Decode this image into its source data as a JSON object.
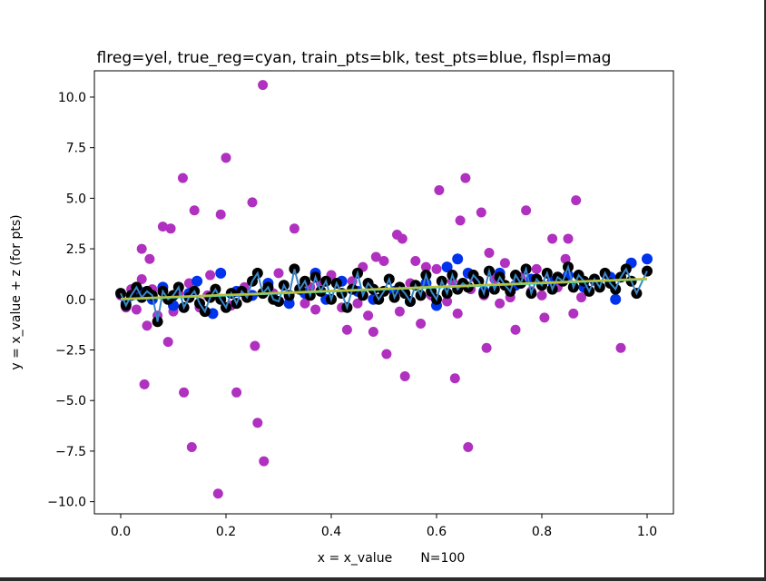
{
  "chart_data": {
    "type": "scatter",
    "title": "flreg=yel, true_reg=cyan, train_pts=blk, test_pts=blue, flspl=mag",
    "xlabel": "x = x_value       N=100",
    "ylabel": "y = x_value + z (for pts)",
    "xlim": [
      -0.05,
      1.05
    ],
    "ylim": [
      -10.6,
      11.3
    ],
    "xticks": [
      0.0,
      0.2,
      0.4,
      0.6,
      0.8,
      1.0
    ],
    "xtick_labels": [
      "0.0",
      "0.2",
      "0.4",
      "0.6",
      "0.8",
      "1.0"
    ],
    "yticks": [
      -10.0,
      -7.5,
      -5.0,
      -2.5,
      0.0,
      2.5,
      5.0,
      7.5,
      10.0
    ],
    "ytick_labels": [
      "−10.0",
      "−7.5",
      "−5.0",
      "−2.5",
      "0.0",
      "2.5",
      "5.0",
      "7.5",
      "10.0"
    ],
    "grid": false,
    "colors": {
      "train": "#000000",
      "test": "#0033ee",
      "magenta": "#b030c0",
      "spline": "#3a86c8",
      "true_reg": "#00d8d8",
      "fit_reg": "#b8c040"
    },
    "series": [
      {
        "role": "magenta-scatter",
        "points": [
          [
            0.0,
            0.2
          ],
          [
            0.01,
            -0.4
          ],
          [
            0.02,
            0.5
          ],
          [
            0.03,
            -0.5
          ],
          [
            0.04,
            1.0
          ],
          [
            0.04,
            2.5
          ],
          [
            0.045,
            -4.2
          ],
          [
            0.05,
            -1.3
          ],
          [
            0.055,
            2.0
          ],
          [
            0.06,
            0.5
          ],
          [
            0.07,
            -0.8
          ],
          [
            0.08,
            3.6
          ],
          [
            0.09,
            -2.1
          ],
          [
            0.095,
            3.5
          ],
          [
            0.1,
            -0.6
          ],
          [
            0.11,
            0.3
          ],
          [
            0.118,
            6.0
          ],
          [
            0.12,
            -4.6
          ],
          [
            0.13,
            0.8
          ],
          [
            0.135,
            -7.3
          ],
          [
            0.14,
            4.4
          ],
          [
            0.15,
            -0.4
          ],
          [
            0.165,
            0.2
          ],
          [
            0.17,
            1.2
          ],
          [
            0.185,
            -9.6
          ],
          [
            0.19,
            4.2
          ],
          [
            0.2,
            7.0
          ],
          [
            0.21,
            -0.3
          ],
          [
            0.22,
            -4.6
          ],
          [
            0.235,
            0.6
          ],
          [
            0.25,
            4.8
          ],
          [
            0.255,
            -2.3
          ],
          [
            0.26,
            -6.1
          ],
          [
            0.27,
            10.6
          ],
          [
            0.272,
            -8.0
          ],
          [
            0.29,
            0.3
          ],
          [
            0.3,
            1.3
          ],
          [
            0.32,
            0.1
          ],
          [
            0.33,
            3.5
          ],
          [
            0.35,
            -0.2
          ],
          [
            0.36,
            0.6
          ],
          [
            0.37,
            -0.5
          ],
          [
            0.38,
            0.8
          ],
          [
            0.4,
            1.2
          ],
          [
            0.42,
            -0.4
          ],
          [
            0.43,
            -1.5
          ],
          [
            0.44,
            0.9
          ],
          [
            0.45,
            -0.2
          ],
          [
            0.46,
            1.6
          ],
          [
            0.47,
            -0.8
          ],
          [
            0.48,
            -1.6
          ],
          [
            0.485,
            2.1
          ],
          [
            0.5,
            1.9
          ],
          [
            0.505,
            -2.7
          ],
          [
            0.52,
            0.3
          ],
          [
            0.525,
            3.2
          ],
          [
            0.53,
            -0.6
          ],
          [
            0.535,
            3.0
          ],
          [
            0.54,
            -3.8
          ],
          [
            0.55,
            0.8
          ],
          [
            0.56,
            1.9
          ],
          [
            0.57,
            -1.2
          ],
          [
            0.58,
            1.6
          ],
          [
            0.59,
            0.2
          ],
          [
            0.6,
            1.5
          ],
          [
            0.605,
            5.4
          ],
          [
            0.62,
            -0.1
          ],
          [
            0.63,
            0.9
          ],
          [
            0.635,
            -3.9
          ],
          [
            0.64,
            -0.7
          ],
          [
            0.645,
            3.9
          ],
          [
            0.655,
            6.0
          ],
          [
            0.66,
            -7.3
          ],
          [
            0.665,
            0.5
          ],
          [
            0.67,
            1.1
          ],
          [
            0.685,
            4.3
          ],
          [
            0.69,
            0.2
          ],
          [
            0.695,
            -2.4
          ],
          [
            0.7,
            2.3
          ],
          [
            0.71,
            1.0
          ],
          [
            0.72,
            -0.2
          ],
          [
            0.73,
            1.8
          ],
          [
            0.74,
            0.1
          ],
          [
            0.75,
            -1.5
          ],
          [
            0.76,
            1.1
          ],
          [
            0.77,
            4.4
          ],
          [
            0.78,
            0.4
          ],
          [
            0.79,
            1.5
          ],
          [
            0.8,
            0.2
          ],
          [
            0.805,
            -0.9
          ],
          [
            0.82,
            3.0
          ],
          [
            0.83,
            0.6
          ],
          [
            0.84,
            1.0
          ],
          [
            0.845,
            2.0
          ],
          [
            0.85,
            3.0
          ],
          [
            0.86,
            -0.7
          ],
          [
            0.865,
            4.9
          ],
          [
            0.875,
            0.1
          ],
          [
            0.9,
            0.9
          ],
          [
            0.95,
            -2.4
          ]
        ]
      },
      {
        "role": "test-points",
        "points": [
          [
            0.01,
            -0.2
          ],
          [
            0.035,
            0.4
          ],
          [
            0.06,
            0.0
          ],
          [
            0.08,
            0.6
          ],
          [
            0.1,
            -0.3
          ],
          [
            0.13,
            0.3
          ],
          [
            0.145,
            0.9
          ],
          [
            0.175,
            -0.7
          ],
          [
            0.19,
            1.3
          ],
          [
            0.22,
            0.4
          ],
          [
            0.25,
            0.2
          ],
          [
            0.28,
            0.8
          ],
          [
            0.32,
            -0.2
          ],
          [
            0.35,
            0.3
          ],
          [
            0.37,
            1.3
          ],
          [
            0.39,
            0.0
          ],
          [
            0.42,
            0.9
          ],
          [
            0.45,
            0.4
          ],
          [
            0.48,
            0.0
          ],
          [
            0.52,
            0.4
          ],
          [
            0.55,
            -0.1
          ],
          [
            0.58,
            0.8
          ],
          [
            0.6,
            -0.3
          ],
          [
            0.62,
            1.6
          ],
          [
            0.64,
            2.0
          ],
          [
            0.66,
            1.3
          ],
          [
            0.69,
            0.4
          ],
          [
            0.72,
            1.3
          ],
          [
            0.75,
            0.7
          ],
          [
            0.78,
            1.0
          ],
          [
            0.82,
            0.9
          ],
          [
            0.85,
            1.2
          ],
          [
            0.88,
            0.6
          ],
          [
            0.9,
            1.0
          ],
          [
            0.93,
            1.1
          ],
          [
            0.94,
            0.0
          ],
          [
            0.97,
            1.8
          ],
          [
            1.0,
            2.0
          ]
        ]
      },
      {
        "role": "train-points",
        "points": [
          [
            0.0,
            0.3
          ],
          [
            0.01,
            -0.3
          ],
          [
            0.02,
            0.2
          ],
          [
            0.03,
            0.6
          ],
          [
            0.04,
            0.1
          ],
          [
            0.05,
            0.4
          ],
          [
            0.06,
            0.2
          ],
          [
            0.07,
            -1.1
          ],
          [
            0.08,
            0.4
          ],
          [
            0.09,
            0.0
          ],
          [
            0.1,
            0.2
          ],
          [
            0.11,
            0.6
          ],
          [
            0.12,
            -0.4
          ],
          [
            0.13,
            0.1
          ],
          [
            0.14,
            0.4
          ],
          [
            0.15,
            -0.2
          ],
          [
            0.16,
            -0.6
          ],
          [
            0.17,
            0.1
          ],
          [
            0.18,
            0.5
          ],
          [
            0.19,
            0.0
          ],
          [
            0.2,
            -0.4
          ],
          [
            0.21,
            0.3
          ],
          [
            0.22,
            -0.2
          ],
          [
            0.23,
            0.4
          ],
          [
            0.24,
            0.1
          ],
          [
            0.25,
            0.9
          ],
          [
            0.26,
            1.3
          ],
          [
            0.27,
            0.3
          ],
          [
            0.28,
            0.6
          ],
          [
            0.29,
            0.0
          ],
          [
            0.3,
            -0.1
          ],
          [
            0.31,
            0.7
          ],
          [
            0.32,
            0.2
          ],
          [
            0.33,
            1.5
          ],
          [
            0.34,
            0.5
          ],
          [
            0.35,
            0.9
          ],
          [
            0.36,
            0.2
          ],
          [
            0.37,
            1.1
          ],
          [
            0.38,
            0.4
          ],
          [
            0.39,
            0.9
          ],
          [
            0.4,
            0.0
          ],
          [
            0.41,
            0.8
          ],
          [
            0.42,
            0.3
          ],
          [
            0.43,
            -0.4
          ],
          [
            0.44,
            0.5
          ],
          [
            0.45,
            1.3
          ],
          [
            0.46,
            0.2
          ],
          [
            0.47,
            0.8
          ],
          [
            0.48,
            0.5
          ],
          [
            0.49,
            0.0
          ],
          [
            0.5,
            0.4
          ],
          [
            0.51,
            1.0
          ],
          [
            0.52,
            0.1
          ],
          [
            0.53,
            0.6
          ],
          [
            0.54,
            0.3
          ],
          [
            0.55,
            -0.1
          ],
          [
            0.56,
            0.7
          ],
          [
            0.57,
            0.2
          ],
          [
            0.58,
            1.2
          ],
          [
            0.59,
            0.4
          ],
          [
            0.6,
            0.0
          ],
          [
            0.61,
            0.9
          ],
          [
            0.62,
            0.3
          ],
          [
            0.63,
            1.2
          ],
          [
            0.64,
            0.5
          ],
          [
            0.65,
            0.8
          ],
          [
            0.66,
            0.6
          ],
          [
            0.67,
            1.2
          ],
          [
            0.68,
            0.9
          ],
          [
            0.69,
            0.3
          ],
          [
            0.7,
            1.4
          ],
          [
            0.71,
            0.5
          ],
          [
            0.72,
            1.1
          ],
          [
            0.73,
            0.7
          ],
          [
            0.74,
            0.4
          ],
          [
            0.75,
            1.2
          ],
          [
            0.76,
            0.8
          ],
          [
            0.77,
            1.5
          ],
          [
            0.78,
            0.3
          ],
          [
            0.79,
            1.0
          ],
          [
            0.8,
            0.7
          ],
          [
            0.81,
            1.3
          ],
          [
            0.82,
            0.5
          ],
          [
            0.83,
            1.1
          ],
          [
            0.84,
            0.9
          ],
          [
            0.85,
            1.6
          ],
          [
            0.86,
            0.6
          ],
          [
            0.87,
            1.2
          ],
          [
            0.88,
            0.9
          ],
          [
            0.89,
            0.4
          ],
          [
            0.9,
            1.0
          ],
          [
            0.91,
            0.6
          ],
          [
            0.92,
            1.3
          ],
          [
            0.93,
            0.8
          ],
          [
            0.94,
            0.5
          ],
          [
            0.95,
            1.1
          ],
          [
            0.96,
            1.5
          ],
          [
            0.97,
            0.9
          ],
          [
            0.98,
            0.3
          ],
          [
            1.0,
            1.4
          ]
        ]
      },
      {
        "role": "true-regression",
        "points": [
          [
            0.0,
            0.0
          ],
          [
            1.0,
            1.0
          ]
        ]
      },
      {
        "role": "fitted-regression",
        "points": [
          [
            0.0,
            0.02
          ],
          [
            1.0,
            1.02
          ]
        ]
      }
    ]
  }
}
